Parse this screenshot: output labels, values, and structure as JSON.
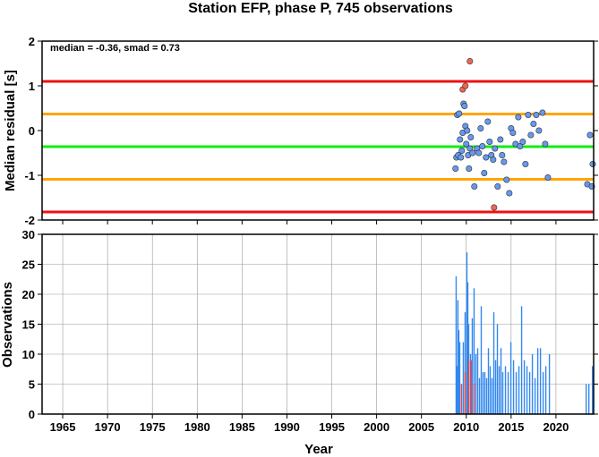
{
  "chart_data": [
    {
      "type": "scatter",
      "title": "Station EFP, phase P, 745 observations",
      "ylabel": "Median residual [s]",
      "annotation": "median = -0.36, smad = 0.73",
      "xlim": [
        1962.7,
        2024.2
      ],
      "ylim": [
        -2,
        2
      ],
      "yticks": [
        -2,
        -1,
        0,
        1,
        2
      ],
      "grid": false,
      "reference_lines": [
        {
          "value": 1.1,
          "color": "#ee1111"
        },
        {
          "value": 0.37,
          "color": "#ffa500"
        },
        {
          "value": -0.36,
          "color": "#11ee11"
        },
        {
          "value": -1.09,
          "color": "#ffa500"
        },
        {
          "value": -1.82,
          "color": "#ee1111"
        }
      ],
      "series": [
        {
          "color": "#6699ee",
          "x": [
            2008.8,
            2008.9,
            2009.0,
            2009.1,
            2009.2,
            2009.3,
            2009.4,
            2009.5,
            2009.6,
            2009.7,
            2009.8,
            2009.9,
            2010.0,
            2010.1,
            2010.2,
            2010.3,
            2010.4,
            2010.5,
            2010.7,
            2010.9,
            2011.2,
            2011.4,
            2011.6,
            2011.8,
            2012.0,
            2012.2,
            2012.4,
            2012.6,
            2012.8,
            2013.0,
            2013.2,
            2013.5,
            2013.8,
            2014.0,
            2014.2,
            2014.5,
            2014.8,
            2015.0,
            2015.2,
            2015.5,
            2015.8,
            2016.0,
            2016.3,
            2016.6,
            2016.9,
            2017.2,
            2017.5,
            2017.8,
            2018.1,
            2018.5,
            2018.8,
            2019.1,
            2023.5,
            2023.8,
            2024.0,
            2024.1
          ],
          "values": [
            -0.85,
            -0.6,
            0.35,
            -0.55,
            0.38,
            -0.2,
            -0.6,
            -0.45,
            -0.05,
            0.6,
            0.55,
            0.1,
            -0.3,
            0.0,
            -0.55,
            -0.85,
            -0.4,
            -0.15,
            -0.5,
            -1.25,
            -0.4,
            -0.5,
            0.05,
            -0.35,
            -0.95,
            -0.6,
            0.2,
            -0.25,
            -0.55,
            -0.65,
            -0.4,
            -1.25,
            -0.2,
            -0.55,
            -0.7,
            -1.1,
            -1.4,
            0.05,
            -0.05,
            -0.3,
            0.3,
            -0.35,
            -0.25,
            -0.75,
            0.35,
            -0.1,
            0.15,
            0.35,
            0.0,
            0.4,
            -0.3,
            -1.05,
            -1.2,
            -0.1,
            -1.25,
            -0.75
          ]
        },
        {
          "color": "#ee6655",
          "x": [
            2009.6,
            2009.9,
            2010.4,
            2013.1
          ],
          "values": [
            0.92,
            1.0,
            1.55,
            -1.72
          ]
        }
      ]
    },
    {
      "type": "bar",
      "ylabel": "Observations",
      "xlabel": "Year",
      "xlim": [
        1962.7,
        2024.2
      ],
      "xticks": [
        1965,
        1970,
        1975,
        1980,
        1985,
        1990,
        1995,
        2000,
        2005,
        2010,
        2015,
        2020
      ],
      "ylim": [
        0,
        30
      ],
      "yticks": [
        0,
        5,
        10,
        15,
        20,
        25,
        30
      ],
      "grid": true,
      "series": [
        {
          "color": "#3388ee",
          "x": [
            2008.8,
            2008.9,
            2009.0,
            2009.1,
            2009.2,
            2009.4,
            2009.6,
            2009.8,
            2010.0,
            2010.1,
            2010.2,
            2010.4,
            2010.6,
            2010.8,
            2011.0,
            2011.2,
            2011.4,
            2011.6,
            2011.8,
            2012.0,
            2012.2,
            2012.4,
            2012.6,
            2012.8,
            2013.0,
            2013.2,
            2013.4,
            2013.6,
            2013.8,
            2014.0,
            2014.3,
            2014.6,
            2014.9,
            2015.2,
            2015.5,
            2015.8,
            2016.1,
            2016.4,
            2016.7,
            2017.0,
            2017.3,
            2017.6,
            2017.9,
            2018.2,
            2018.5,
            2018.8,
            2019.2,
            2023.3,
            2023.6,
            2024.0
          ],
          "values": [
            23,
            8,
            19,
            14,
            12,
            5,
            12,
            17,
            27,
            22,
            15,
            10,
            16,
            21,
            10,
            11,
            6,
            18,
            7,
            7,
            6,
            11,
            8,
            6,
            17,
            9,
            15,
            8,
            11,
            7,
            8,
            7,
            12,
            9,
            7,
            8,
            18,
            9,
            8,
            7,
            10,
            6,
            11,
            11,
            7,
            8,
            10,
            5,
            5,
            8
          ]
        },
        {
          "color": "#ee4444",
          "x": [
            2009.4,
            2009.8,
            2010.2,
            2010.5,
            2010.8
          ],
          "values": [
            5,
            7,
            9,
            9,
            5
          ]
        }
      ]
    }
  ]
}
